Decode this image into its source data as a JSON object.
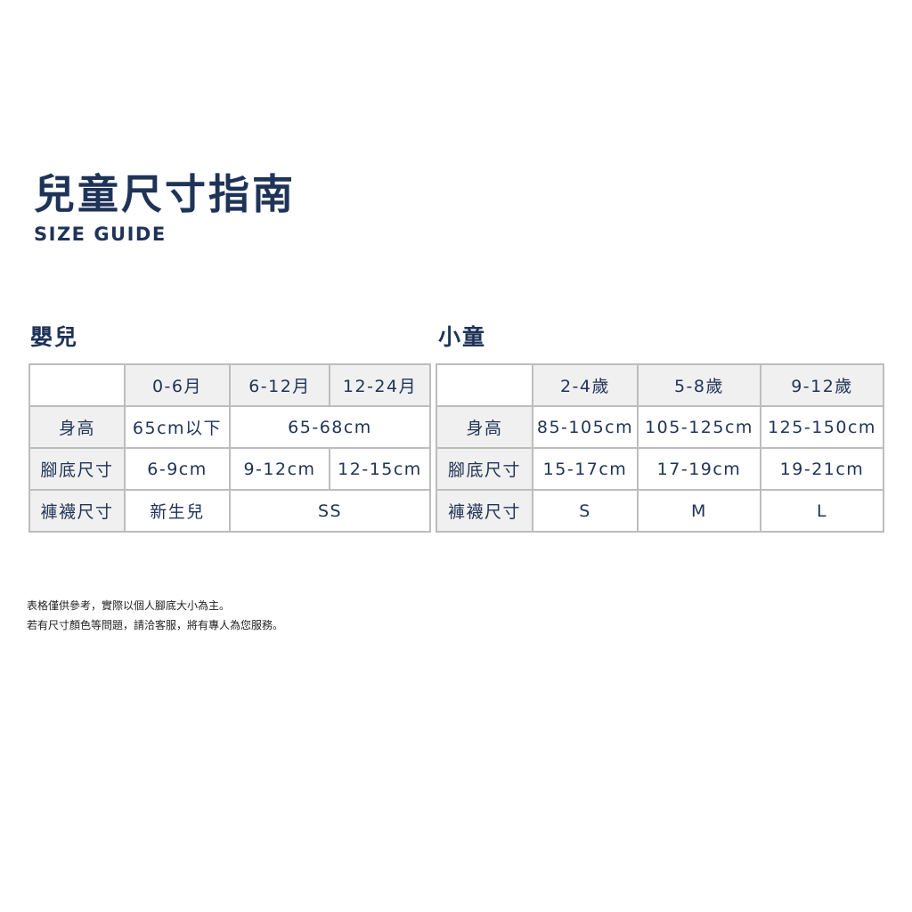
{
  "header": {
    "title": "兒童尺寸指南",
    "subtitle": "SIZE GUIDE"
  },
  "baby": {
    "heading": "嬰兒",
    "columns": [
      "0-6月",
      "6-12月",
      "12-24月"
    ],
    "rows": {
      "height": {
        "label": "身高",
        "values": [
          "65cm以下",
          "65-68cm"
        ]
      },
      "foot": {
        "label": "腳底尺寸",
        "values": [
          "6-9cm",
          "9-12cm",
          "12-15cm"
        ]
      },
      "sock": {
        "label": "褲襪尺寸",
        "values": [
          "新生兒",
          "SS"
        ]
      }
    }
  },
  "kids": {
    "heading": "小童",
    "columns": [
      "2-4歲",
      "5-8歲",
      "9-12歲"
    ],
    "rows": {
      "height": {
        "label": "身高",
        "values": [
          "85-105cm",
          "105-125cm",
          "125-150cm"
        ]
      },
      "foot": {
        "label": "腳底尺寸",
        "values": [
          "15-17cm",
          "17-19cm",
          "19-21cm"
        ]
      },
      "sock": {
        "label": "褲襪尺寸",
        "values": [
          "S",
          "M",
          "L"
        ]
      }
    }
  },
  "notes": [
    "表格僅供參考，實際以個人腳底大小為主。",
    "若有尺寸顏色等問題，請洽客服，將有專人為您服務。"
  ],
  "colors": {
    "text": "#1f3358",
    "header_bg": "#f0f0f0",
    "border": "#bdbdbd"
  }
}
